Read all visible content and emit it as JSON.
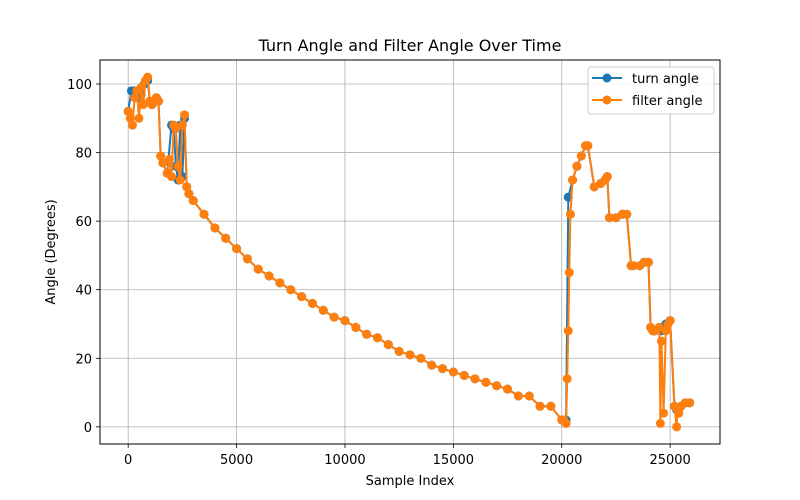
{
  "chart_data": {
    "type": "line",
    "title": "Turn Angle and Filter Angle Over Time",
    "xlabel": "Sample Index",
    "ylabel": "Angle (Degrees)",
    "xlim": [
      -1300,
      27300
    ],
    "ylim": [
      -5,
      107
    ],
    "xticks": [
      0,
      5000,
      10000,
      15000,
      20000,
      25000
    ],
    "yticks": [
      0,
      20,
      40,
      60,
      80,
      100
    ],
    "grid": true,
    "legend_position": "top-right",
    "series": [
      {
        "name": "turn angle",
        "color": "#1f77b4",
        "marker": "circle",
        "x": [
          0,
          150,
          300,
          450,
          600,
          750,
          900,
          1000,
          1100,
          1200,
          1300,
          1400,
          1500,
          1600,
          1800,
          2000,
          2100,
          2200,
          2300,
          2400,
          2500,
          2600,
          2700,
          2800,
          3000,
          3500,
          4000,
          4500,
          5000,
          5500,
          6000,
          6500,
          7000,
          7500,
          8000,
          8500,
          9000,
          9500,
          10000,
          10500,
          11000,
          11500,
          12000,
          12500,
          13000,
          13500,
          14000,
          14500,
          15000,
          15500,
          16000,
          16500,
          17000,
          17500,
          18000,
          18500,
          19000,
          19500,
          20000,
          20200,
          20300,
          20500,
          20700,
          20900,
          21100,
          21200,
          21500,
          21800,
          22000,
          22100,
          22200,
          22500,
          22800,
          23000,
          23200,
          23300,
          23600,
          23800,
          24000,
          24100,
          24200,
          24300,
          24500,
          24600,
          24800,
          25000,
          25200,
          25300,
          25500,
          25700,
          25900
        ],
        "y": [
          92,
          98,
          98,
          96,
          97,
          100,
          101,
          95,
          94,
          95,
          96,
          95,
          79,
          77,
          74,
          88,
          87,
          76,
          72,
          88,
          73,
          90,
          70,
          68,
          66,
          62,
          58,
          55,
          52,
          49,
          46,
          44,
          42,
          40,
          38,
          36,
          34,
          32,
          31,
          29,
          27,
          26,
          24,
          22,
          21,
          20,
          18,
          17,
          16,
          15,
          14,
          13,
          12,
          11,
          9,
          9,
          6,
          6,
          2,
          2,
          67,
          72,
          76,
          79,
          82,
          82,
          70,
          71,
          72,
          73,
          61,
          61,
          62,
          62,
          47,
          47,
          47,
          48,
          48,
          29,
          28,
          28,
          29,
          28,
          30,
          31,
          6,
          5,
          6,
          7,
          7
        ]
      },
      {
        "name": "filter angle",
        "color": "#ff7f0e",
        "marker": "circle",
        "x": [
          0,
          100,
          200,
          300,
          400,
          500,
          600,
          700,
          800,
          900,
          1000,
          1100,
          1200,
          1300,
          1400,
          1500,
          1600,
          1800,
          1900,
          2000,
          2100,
          2200,
          2300,
          2400,
          2500,
          2600,
          2700,
          2800,
          3000,
          3500,
          4000,
          4500,
          5000,
          5500,
          6000,
          6500,
          7000,
          7500,
          8000,
          8500,
          9000,
          9500,
          10000,
          10500,
          11000,
          11500,
          12000,
          12500,
          13000,
          13500,
          14000,
          14500,
          15000,
          15500,
          16000,
          16500,
          17000,
          17500,
          18000,
          18500,
          19000,
          19500,
          20000,
          20100,
          20200,
          20250,
          20300,
          20350,
          20400,
          20500,
          20700,
          20900,
          21100,
          21200,
          21500,
          21800,
          22000,
          22100,
          22200,
          22500,
          22800,
          23000,
          23200,
          23300,
          23600,
          23800,
          24000,
          24100,
          24200,
          24300,
          24500,
          24550,
          24600,
          24700,
          24800,
          24900,
          25000,
          25200,
          25300,
          25350,
          25400,
          25500,
          25700,
          25900
        ],
        "y": [
          92,
          90,
          88,
          96,
          98,
          90,
          99,
          94,
          101,
          102,
          95,
          94,
          95,
          96,
          95,
          79,
          77,
          74,
          78,
          73,
          88,
          87,
          76,
          72,
          88,
          91,
          70,
          68,
          66,
          62,
          58,
          55,
          52,
          49,
          46,
          44,
          42,
          40,
          38,
          36,
          34,
          32,
          31,
          29,
          27,
          26,
          24,
          22,
          21,
          20,
          18,
          17,
          16,
          15,
          14,
          13,
          12,
          11,
          9,
          9,
          6,
          6,
          2,
          2,
          1,
          14,
          28,
          45,
          62,
          72,
          76,
          79,
          82,
          82,
          70,
          71,
          72,
          73,
          61,
          61,
          62,
          62,
          47,
          47,
          47,
          48,
          48,
          29,
          28,
          28,
          29,
          1,
          25,
          4,
          28,
          30,
          31,
          6,
          0,
          5,
          4,
          6,
          7,
          7
        ]
      }
    ]
  }
}
